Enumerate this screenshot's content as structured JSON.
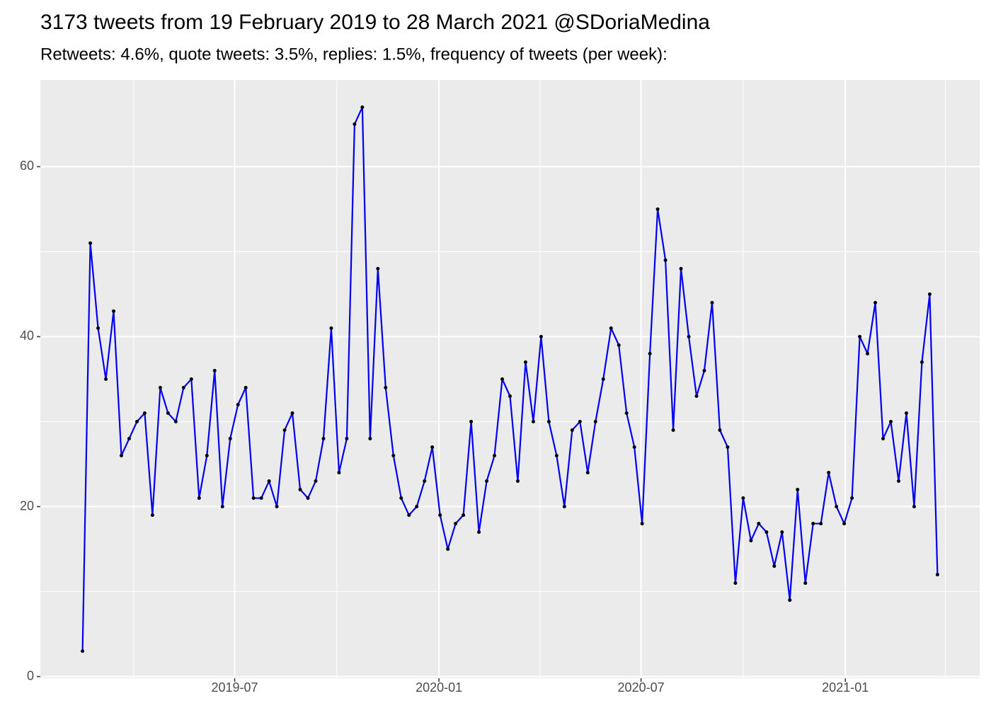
{
  "chart_data": {
    "type": "line",
    "title": "3173 tweets from 19 February 2019 to 28 March 2021 @SDoriaMedina",
    "subtitle": "Retweets: 4.6%, quote tweets: 3.5%, replies: 1.5%, frequency of tweets (per week):",
    "x": [
      "2019-02-14",
      "2019-02-21",
      "2019-02-28",
      "2019-03-07",
      "2019-03-14",
      "2019-03-21",
      "2019-03-28",
      "2019-04-04",
      "2019-04-11",
      "2019-04-18",
      "2019-04-25",
      "2019-05-02",
      "2019-05-09",
      "2019-05-16",
      "2019-05-23",
      "2019-05-30",
      "2019-06-06",
      "2019-06-13",
      "2019-06-20",
      "2019-06-27",
      "2019-07-04",
      "2019-07-11",
      "2019-07-18",
      "2019-07-25",
      "2019-08-01",
      "2019-08-08",
      "2019-08-15",
      "2019-08-22",
      "2019-08-29",
      "2019-09-05",
      "2019-09-12",
      "2019-09-19",
      "2019-09-26",
      "2019-10-03",
      "2019-10-10",
      "2019-10-17",
      "2019-10-24",
      "2019-10-31",
      "2019-11-07",
      "2019-11-14",
      "2019-11-21",
      "2019-11-28",
      "2019-12-05",
      "2019-12-12",
      "2019-12-19",
      "2019-12-26",
      "2020-01-02",
      "2020-01-09",
      "2020-01-16",
      "2020-01-23",
      "2020-01-30",
      "2020-02-06",
      "2020-02-13",
      "2020-02-20",
      "2020-02-27",
      "2020-03-05",
      "2020-03-12",
      "2020-03-19",
      "2020-03-26",
      "2020-04-02",
      "2020-04-09",
      "2020-04-16",
      "2020-04-23",
      "2020-04-30",
      "2020-05-07",
      "2020-05-14",
      "2020-05-21",
      "2020-05-28",
      "2020-06-04",
      "2020-06-11",
      "2020-06-18",
      "2020-06-25",
      "2020-07-02",
      "2020-07-09",
      "2020-07-16",
      "2020-07-23",
      "2020-07-30",
      "2020-08-06",
      "2020-08-13",
      "2020-08-20",
      "2020-08-27",
      "2020-09-03",
      "2020-09-10",
      "2020-09-17",
      "2020-09-24",
      "2020-10-01",
      "2020-10-08",
      "2020-10-15",
      "2020-10-22",
      "2020-10-29",
      "2020-11-05",
      "2020-11-12",
      "2020-11-19",
      "2020-11-26",
      "2020-12-03",
      "2020-12-10",
      "2020-12-17",
      "2020-12-24",
      "2020-12-31",
      "2021-01-07",
      "2021-01-14",
      "2021-01-21",
      "2021-01-28",
      "2021-02-04",
      "2021-02-11",
      "2021-02-18",
      "2021-02-25",
      "2021-03-04",
      "2021-03-11",
      "2021-03-18",
      "2021-03-25"
    ],
    "series": [
      {
        "color": "#0000ee",
        "point_color": "#000000",
        "values": [
          3,
          51,
          41,
          35,
          43,
          26,
          28,
          30,
          31,
          19,
          34,
          31,
          30,
          34,
          35,
          21,
          26,
          36,
          20,
          28,
          32,
          34,
          21,
          21,
          23,
          20,
          29,
          31,
          22,
          21,
          23,
          28,
          41,
          24,
          28,
          65,
          67,
          28,
          48,
          34,
          26,
          21,
          19,
          20,
          23,
          27,
          19,
          15,
          18,
          19,
          30,
          17,
          23,
          26,
          35,
          33,
          23,
          37,
          30,
          40,
          30,
          26,
          20,
          29,
          30,
          24,
          30,
          35,
          41,
          39,
          31,
          27,
          18,
          38,
          55,
          49,
          29,
          48,
          40,
          33,
          36,
          44,
          29,
          27,
          11,
          21,
          16,
          18,
          17,
          13,
          17,
          9,
          22,
          11,
          18,
          18,
          24,
          20,
          18,
          21,
          40,
          38,
          44,
          28,
          30,
          23,
          31,
          20,
          37,
          45,
          12
        ]
      }
    ],
    "xlim": [
      "2019-01-07",
      "2021-05-02"
    ],
    "xticks": [
      {
        "value": "2019-07-01",
        "label": "2019-07"
      },
      {
        "value": "2020-01-01",
        "label": "2020-01"
      },
      {
        "value": "2020-07-01",
        "label": "2020-07"
      },
      {
        "value": "2021-01-01",
        "label": "2021-01"
      }
    ],
    "xminor": [
      "2019-04-01",
      "2019-10-01",
      "2020-04-01",
      "2020-10-01",
      "2021-04-01"
    ],
    "ylim": [
      -0.2,
      70.2
    ],
    "yticks": [
      0,
      20,
      40,
      60
    ],
    "yminor": [
      10,
      30,
      50
    ],
    "grid": true
  }
}
